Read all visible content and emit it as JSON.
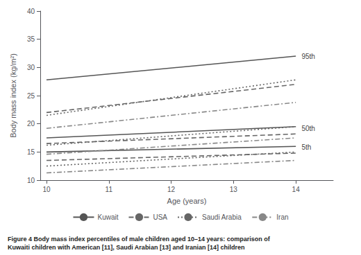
{
  "chart_data": {
    "type": "line",
    "title": "Figure 4 Body mass index percentiles of male children aged 10–14 years: comparison of",
    "subtitle": "Kuwaiti children with American [11], Saudi Arabian [13] and Iranian [14] children",
    "x_label": "Age (years)",
    "y_label": "Body mass index (kg/m²)",
    "x": [
      10,
      14
    ],
    "series": [
      {
        "name": "Kuwait",
        "color": "#555555",
        "line_style": "solid",
        "values": [
          27.8,
          32.0
        ]
      },
      {
        "name": "Kuwait",
        "color": "#555555",
        "line_style": "solid",
        "values": [
          17.5,
          19.5
        ]
      },
      {
        "name": "Kuwait",
        "color": "#555555",
        "line_style": "solid",
        "values": [
          15.0,
          16.0
        ]
      },
      {
        "name": "USA",
        "color": "#666666",
        "line_style": "dashed",
        "values": [
          22.0,
          27.0
        ]
      },
      {
        "name": "USA",
        "color": "#666666",
        "line_style": "dashed",
        "values": [
          16.5,
          18.2
        ]
      },
      {
        "name": "USA",
        "color": "#666666",
        "line_style": "dashed",
        "values": [
          13.5,
          14.8
        ]
      },
      {
        "name": "Saudi Arabia",
        "color": "#666666",
        "line_style": "dotted",
        "values": [
          21.5,
          27.8
        ]
      },
      {
        "name": "Saudi Arabia",
        "color": "#666666",
        "line_style": "dotted",
        "values": [
          16.2,
          19.5
        ]
      },
      {
        "name": "Saudi Arabia",
        "color": "#666666",
        "line_style": "dotted",
        "values": [
          12.5,
          15.0
        ]
      },
      {
        "name": "Iran",
        "color": "#888888",
        "line_style": "dashdot",
        "values": [
          19.2,
          23.8
        ]
      },
      {
        "name": "Iran",
        "color": "#888888",
        "line_style": "dashdot",
        "values": [
          14.6,
          17.5
        ]
      },
      {
        "name": "Iran",
        "color": "#888888",
        "line_style": "dashdot",
        "values": [
          11.3,
          13.5
        ]
      }
    ],
    "annotations": [
      {
        "text": "95th",
        "x": 14.07,
        "y": 32.0
      },
      {
        "text": "50th",
        "x": 14.07,
        "y": 19.2
      },
      {
        "text": "5th",
        "x": 14.07,
        "y": 15.8
      }
    ],
    "xlim": [
      9.9,
      14.6
    ],
    "ylim": [
      10,
      40
    ],
    "xticks": [
      10,
      11,
      12,
      13,
      14
    ],
    "yticks": [
      10,
      15,
      20,
      25,
      30,
      35,
      40
    ],
    "grid": false,
    "legend": "bottom"
  }
}
